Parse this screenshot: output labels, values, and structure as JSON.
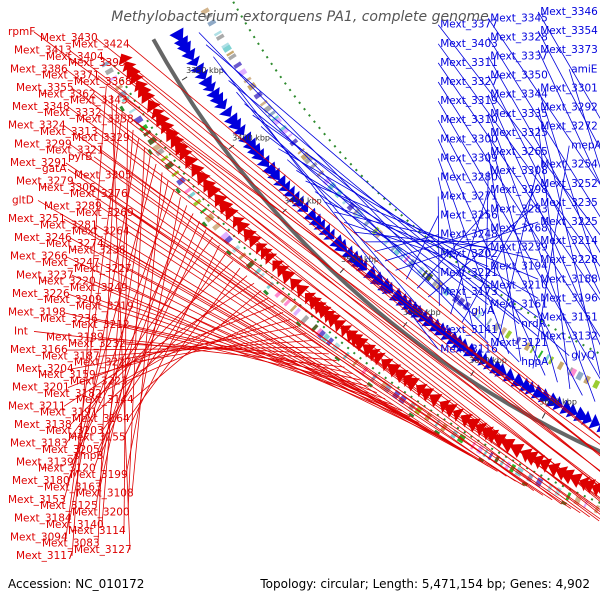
{
  "title": "Methylobacterium extorquens PA1, complete genome",
  "accession": "Accession: NC_010172",
  "topology": "Topology: circular; Length: 5,471,154 bp; Genes: 4,902",
  "colors": {
    "forward": "#0000dd",
    "reverse": "#dd0000",
    "backbone": "#666666",
    "dotted_ring": "#2e8b2e"
  },
  "ticks": [
    "3800 kbp",
    "3750 kbp",
    "3700 kbp",
    "3650 kbp",
    "3600 kbp",
    "3550 kbp",
    "3500 kbp",
    "3450 kbp",
    "3400 kbp",
    "3350 kbp"
  ],
  "left_labels": [
    "rpmF",
    "Mext_3430",
    "Mext_3424",
    "Mext_3413",
    "Mext_3404",
    "Mext_3395",
    "Mext_3386",
    "Mext_3371",
    "Mext_3368",
    "Mext_3355",
    "Mext_3362",
    "Mext_3343",
    "Mext_3348",
    "Mext_3332",
    "Mext_3338",
    "Mext_3324",
    "Mext_3313",
    "Mext_3329",
    "Mext_3299",
    "Mext_3321",
    "pyrB",
    "Mext_3291",
    "gatA",
    "Mext_3305",
    "Mext_3279",
    "Mext_3306",
    "Mext_3276",
    "gltD",
    "Mext_3289",
    "Mext_3269",
    "Mext_3251",
    "Mext_3281",
    "Mext_3264",
    "Mext_3246",
    "Mext_3274",
    "Mext_3238",
    "Mext_3266",
    "Mext_3247",
    "Mext_3227",
    "Mext_3237",
    "Mext_3220",
    "Mext_3249",
    "Mext_3226",
    "Mext_3209",
    "Mext_3219",
    "Mext_3198",
    "Mext_3236",
    "Mext_3212",
    "Int",
    "Mext_3189",
    "Mext_3232",
    "Mext_3166",
    "Mext_3187",
    "Mext_3222",
    "Mext_3204",
    "Mext_3159",
    "Mext_3223",
    "Mext_3201",
    "Mext_3182",
    "Mext_3144",
    "Mext_3211",
    "Mext_3191",
    "Mext_3164",
    "Mext_3138",
    "Mext_3203",
    "Mext_3155",
    "Mext_3183",
    "Mext_3205",
    "smpB",
    "Mext_3139",
    "Mext_3120",
    "Mext_3199",
    "Mext_3180",
    "Mext_3163",
    "Mext_3108",
    "Mext_3153",
    "Mext_3125",
    "Mext_3200",
    "Mext_3184",
    "Mext_3140",
    "Mext_3114",
    "Mext_3094",
    "Mext_3083",
    "Mext_3127",
    "Mext_3117"
  ],
  "right_labels": [
    "Mext_3346",
    "Mext_3345",
    "Mext_3377",
    "Mext_3354",
    "Mext_3328",
    "Mext_3403",
    "Mext_3373",
    "Mext_3337",
    "Mext_3311",
    "amiE",
    "Mext_3350",
    "Mext_3327",
    "Mext_3301",
    "Mext_3344",
    "Mext_3319",
    "Mext_3292",
    "Mext_3335",
    "Mext_3310",
    "Mext_3272",
    "Mext_3325",
    "Mext_3300",
    "mepA",
    "Mext_3265",
    "Mext_3309",
    "Mext_3254",
    "Mext_3308",
    "Mext_3280",
    "Mext_3252",
    "Mext_3298",
    "Mext_3271",
    "Mext_3235",
    "Mext_3283",
    "Mext_3256",
    "Mext_3225",
    "Mext_3268",
    "Mext_3248",
    "Mext_3214",
    "Mext_3239",
    "Mext_3202",
    "Mext_3228",
    "Mext_3194",
    "Mext_3221",
    "Mext_3188",
    "Mext_3210",
    "Mext_3173",
    "Mext_3196",
    "Mext_3161",
    "glyA",
    "Mext_3151",
    "nrdR",
    "Mext_3141",
    "Mext_3132",
    "Mext_3121",
    "Mext_3116",
    "glyQ",
    "hppA"
  ]
}
